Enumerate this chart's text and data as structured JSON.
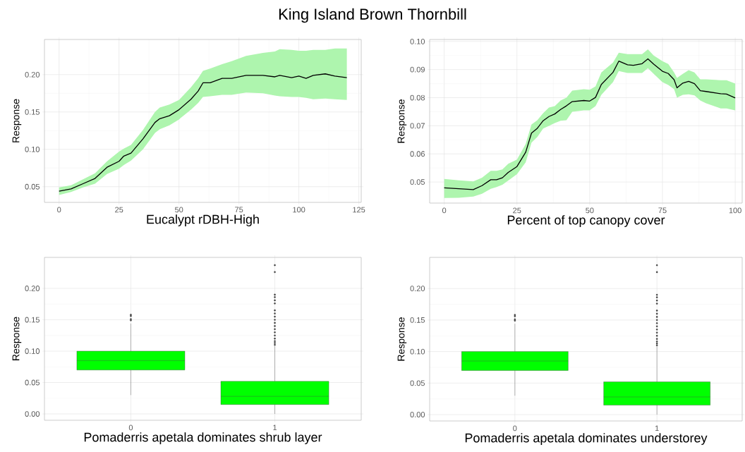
{
  "chart_data": [
    {
      "type": "line",
      "title": "King Island Brown Thornbill",
      "xlabel": "Eucalypt rDBH-High",
      "ylabel": "Response",
      "x": [
        0,
        5,
        10,
        15,
        20,
        25,
        27,
        30,
        35,
        40,
        42,
        46,
        50,
        55,
        58,
        60,
        63,
        68,
        72,
        78,
        85,
        90,
        92,
        97,
        100,
        103,
        106,
        111,
        115,
        120
      ],
      "series": [
        {
          "color": "#000000",
          "values": [
            0.044,
            0.047,
            0.054,
            0.061,
            0.076,
            0.084,
            0.091,
            0.095,
            0.114,
            0.136,
            0.141,
            0.145,
            0.153,
            0.167,
            0.178,
            0.189,
            0.189,
            0.195,
            0.195,
            0.199,
            0.199,
            0.197,
            0.199,
            0.196,
            0.198,
            0.195,
            0.199,
            0.201,
            0.198,
            0.196
          ],
          "lower": [
            0.039,
            0.043,
            0.049,
            0.054,
            0.067,
            0.074,
            0.079,
            0.085,
            0.1,
            0.122,
            0.127,
            0.132,
            0.14,
            0.153,
            0.162,
            0.17,
            0.171,
            0.173,
            0.173,
            0.176,
            0.175,
            0.172,
            0.171,
            0.17,
            0.17,
            0.169,
            0.167,
            0.168,
            0.167,
            0.166
          ],
          "upper": [
            0.049,
            0.052,
            0.06,
            0.068,
            0.084,
            0.097,
            0.101,
            0.106,
            0.126,
            0.15,
            0.156,
            0.16,
            0.166,
            0.183,
            0.195,
            0.205,
            0.208,
            0.214,
            0.218,
            0.225,
            0.229,
            0.231,
            0.234,
            0.233,
            0.232,
            0.232,
            0.233,
            0.233,
            0.235,
            0.235
          ]
        }
      ],
      "xlim": [
        -6.1,
        126
      ],
      "ylim": [
        0.029,
        0.247
      ],
      "xticks": [
        0,
        25,
        50,
        75,
        100,
        125
      ],
      "yticks": [
        0.05,
        {
          "value": 0.1,
          "label": "0.10"
        },
        0.15,
        {
          "value": 0.2,
          "label": "0.20"
        }
      ],
      "grid": true,
      "marker": "none",
      "line_style": "solid"
    },
    {
      "type": "line",
      "xlabel": "Percent of top canopy cover",
      "ylabel": "Response",
      "x": [
        0,
        5,
        10,
        13,
        16,
        18,
        20,
        22,
        25,
        28,
        30,
        32,
        34,
        36,
        38,
        40,
        42,
        44,
        48,
        50,
        52,
        54,
        58,
        60,
        63,
        65,
        68,
        70,
        72,
        75,
        77,
        79,
        80,
        82,
        84,
        86,
        88,
        90,
        95,
        97,
        100
      ],
      "series": [
        {
          "color": "#000000",
          "values": [
            0.0479,
            0.0476,
            0.0473,
            0.0487,
            0.0508,
            0.0508,
            0.0515,
            0.0534,
            0.0555,
            0.0606,
            0.0674,
            0.0691,
            0.0718,
            0.0733,
            0.0742,
            0.0758,
            0.0771,
            0.0786,
            0.079,
            0.0788,
            0.0801,
            0.0847,
            0.089,
            0.093,
            0.0917,
            0.0915,
            0.0921,
            0.0938,
            0.0919,
            0.0894,
            0.0886,
            0.0864,
            0.0835,
            0.0852,
            0.0858,
            0.085,
            0.0825,
            0.0822,
            0.0814,
            0.0813,
            0.0799
          ],
          "lower": [
            0.0443,
            0.0444,
            0.0448,
            0.0458,
            0.0476,
            0.0482,
            0.049,
            0.0505,
            0.0528,
            0.057,
            0.064,
            0.066,
            0.069,
            0.07,
            0.071,
            0.0718,
            0.072,
            0.075,
            0.0755,
            0.0755,
            0.077,
            0.081,
            0.0855,
            0.0895,
            0.0888,
            0.0888,
            0.0888,
            0.0905,
            0.0885,
            0.0855,
            0.0845,
            0.083,
            0.08,
            0.081,
            0.0812,
            0.0808,
            0.079,
            0.078,
            0.0762,
            0.0762,
            0.0755
          ],
          "upper": [
            0.0511,
            0.0506,
            0.0502,
            0.0515,
            0.054,
            0.054,
            0.0545,
            0.0565,
            0.058,
            0.0635,
            0.0705,
            0.072,
            0.0745,
            0.0765,
            0.077,
            0.079,
            0.08,
            0.0825,
            0.083,
            0.0828,
            0.084,
            0.089,
            0.0925,
            0.096,
            0.0955,
            0.0955,
            0.0955,
            0.0972,
            0.095,
            0.093,
            0.092,
            0.089,
            0.087,
            0.0885,
            0.0898,
            0.089,
            0.0865,
            0.0865,
            0.0862,
            0.0862,
            0.085
          ]
        }
      ],
      "xlim": [
        -5,
        102.4
      ],
      "ylim": [
        0.0425,
        0.1007
      ],
      "xticks": [
        0,
        25,
        50,
        75,
        100
      ],
      "yticks": [
        {
          "value": 0.05,
          "label": "0.05"
        },
        {
          "value": 0.06,
          "label": "0.06"
        },
        0.07,
        0.08,
        0.09,
        {
          "value": 0.1,
          "label": "0.10"
        }
      ],
      "grid": true,
      "marker": "none",
      "line_style": "solid"
    },
    {
      "type": "box",
      "xlabel": "Pomaderris apetala dominates shrub layer",
      "ylabel": "Response",
      "categories": [
        "0",
        "1"
      ],
      "color": "#00ff00",
      "boxes": [
        {
          "low": 0.03,
          "q1": 0.07,
          "median": 0.085,
          "q3": 0.1,
          "high": 0.144,
          "outliers": [
            0.149,
            0.151,
            0.156,
            0.158
          ]
        },
        {
          "low": 0.0,
          "q1": 0.015,
          "median": 0.028,
          "q3": 0.052,
          "high": 0.108,
          "outliers": [
            0.11,
            0.113,
            0.116,
            0.12,
            0.125,
            0.13,
            0.135,
            0.14,
            0.145,
            0.15,
            0.155,
            0.16,
            0.165,
            0.176,
            0.181,
            0.186,
            0.19,
            0.226,
            0.237
          ]
        }
      ],
      "ylim": [
        -0.0101,
        0.2494
      ],
      "yticks": [
        {
          "value": 0,
          "label": "0.00"
        },
        0.05,
        {
          "value": 0.1,
          "label": "0.10"
        },
        0.15,
        {
          "value": 0.2,
          "label": "0.20"
        }
      ],
      "grid": true
    },
    {
      "type": "box",
      "xlabel": "Pomaderris apetala dominates understorey",
      "ylabel": "Response",
      "categories": [
        "0",
        "1"
      ],
      "color": "#00ff00",
      "boxes": [
        {
          "low": 0.03,
          "q1": 0.07,
          "median": 0.085,
          "q3": 0.1,
          "high": 0.144,
          "outliers": [
            0.149,
            0.151,
            0.156,
            0.158
          ]
        },
        {
          "low": 0.0,
          "q1": 0.015,
          "median": 0.028,
          "q3": 0.052,
          "high": 0.108,
          "outliers": [
            0.11,
            0.113,
            0.116,
            0.12,
            0.125,
            0.13,
            0.135,
            0.14,
            0.145,
            0.15,
            0.155,
            0.16,
            0.165,
            0.176,
            0.181,
            0.186,
            0.19,
            0.226,
            0.237
          ]
        }
      ],
      "ylim": [
        -0.0101,
        0.2494
      ],
      "yticks": [
        {
          "value": 0,
          "label": "0.00"
        },
        0.05,
        {
          "value": 0.1,
          "label": "0.10"
        },
        0.15,
        {
          "value": 0.2,
          "label": "0.20"
        }
      ],
      "grid": true
    }
  ]
}
